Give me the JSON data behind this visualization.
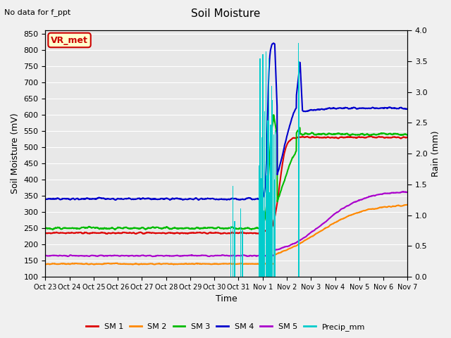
{
  "title": "Soil Moisture",
  "subtitle": "No data for f_ppt",
  "xlabel": "Time",
  "ylabel_left": "Soil Moisture (mV)",
  "ylabel_right": "Rain (mm)",
  "ylim_left": [
    100,
    860
  ],
  "ylim_right": [
    0.0,
    4.0
  ],
  "yticks_left": [
    100,
    150,
    200,
    250,
    300,
    350,
    400,
    450,
    500,
    550,
    600,
    650,
    700,
    750,
    800,
    850
  ],
  "yticks_right": [
    0.0,
    0.5,
    1.0,
    1.5,
    2.0,
    2.5,
    3.0,
    3.5,
    4.0
  ],
  "annotation_box": "VR_met",
  "annotation_box_color": "#cc0000",
  "bg_color": "#e8e8e8",
  "grid_color": "#ffffff",
  "series": {
    "SM1": {
      "color": "#dd0000",
      "lw": 1.5
    },
    "SM2": {
      "color": "#ff8800",
      "lw": 1.5
    },
    "SM3": {
      "color": "#00bb00",
      "lw": 1.5
    },
    "SM4": {
      "color": "#0000cc",
      "lw": 1.5
    },
    "SM5": {
      "color": "#aa00cc",
      "lw": 1.5
    },
    "Precip_mm": {
      "color": "#00cccc",
      "lw": 1.0
    }
  },
  "legend_labels": [
    "SM 1",
    "SM 2",
    "SM 3",
    "SM 4",
    "SM 5",
    "Precip_mm"
  ],
  "legend_colors": [
    "#dd0000",
    "#ff8800",
    "#00bb00",
    "#0000cc",
    "#aa00cc",
    "#00cccc"
  ],
  "sm1_base": 235,
  "sm1_high": 530,
  "sm2_base": 140,
  "sm2_high": 325,
  "sm3_base": 250,
  "sm3_high": 540,
  "sm4_base": 340,
  "sm4_high": 620,
  "sm5_base": 165,
  "sm5_high": 365,
  "noise_sm1": 4,
  "noise_sm2": 3,
  "noise_sm3": 6,
  "noise_sm4": 5,
  "noise_sm5": 3,
  "tick_labels": [
    "Oct 23",
    "Oct 24",
    "Oct 25",
    "Oct 26",
    "Oct 27",
    "Oct 28",
    "Oct 29",
    "Oct 30",
    "Oct 31",
    "Nov 1",
    "Nov 2",
    "Nov 3",
    "Nov 4",
    "Nov 5",
    "Nov 6",
    "Nov 7"
  ]
}
